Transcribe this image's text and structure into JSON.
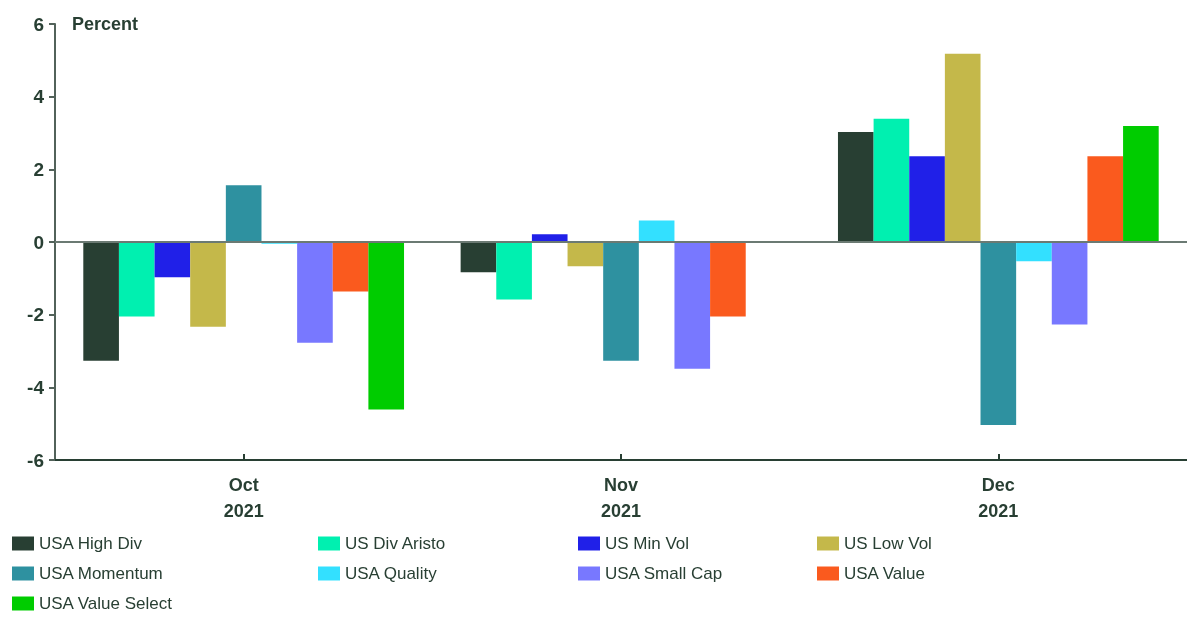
{
  "chart_data": {
    "type": "bar",
    "ylabel": "Percent",
    "categories": [
      "Oct\n2021",
      "Nov\n2021",
      "Dec\n2021"
    ],
    "series": [
      {
        "name": "USA High Div",
        "color": "#283f33",
        "values": [
          -3.27,
          -0.83,
          3.03
        ]
      },
      {
        "name": "US Div Aristo",
        "color": "#00f0b0",
        "values": [
          -2.05,
          -1.58,
          3.39
        ]
      },
      {
        "name": "US Min Vol",
        "color": "#2020e8",
        "values": [
          -0.97,
          0.21,
          2.36
        ]
      },
      {
        "name": "US Low Vol",
        "color": "#c4b84a",
        "values": [
          -2.33,
          -0.67,
          5.18
        ]
      },
      {
        "name": "USA Momentum",
        "color": "#2e91a0",
        "values": [
          1.56,
          -3.27,
          -5.04
        ]
      },
      {
        "name": "USA Quality",
        "color": "#33e0ff",
        "values": [
          -0.05,
          0.59,
          -0.53
        ]
      },
      {
        "name": "USA Small Cap",
        "color": "#7878ff",
        "values": [
          -2.77,
          -3.49,
          -2.27
        ]
      },
      {
        "name": "USA Value",
        "color": "#fa5a1e",
        "values": [
          -1.36,
          -2.05,
          2.36
        ]
      },
      {
        "name": "USA Value Select",
        "color": "#00cc00",
        "values": [
          -4.61,
          -0.02,
          3.19
        ]
      }
    ],
    "ylim": [
      -6,
      6
    ],
    "yticks": [
      -6,
      -4,
      -2,
      0,
      2,
      4,
      6
    ],
    "ref_lines": [
      {
        "axis": "y",
        "value": 0,
        "label": null,
        "color": "#6b7a73"
      }
    ],
    "grid": false,
    "legend": "bottom"
  }
}
